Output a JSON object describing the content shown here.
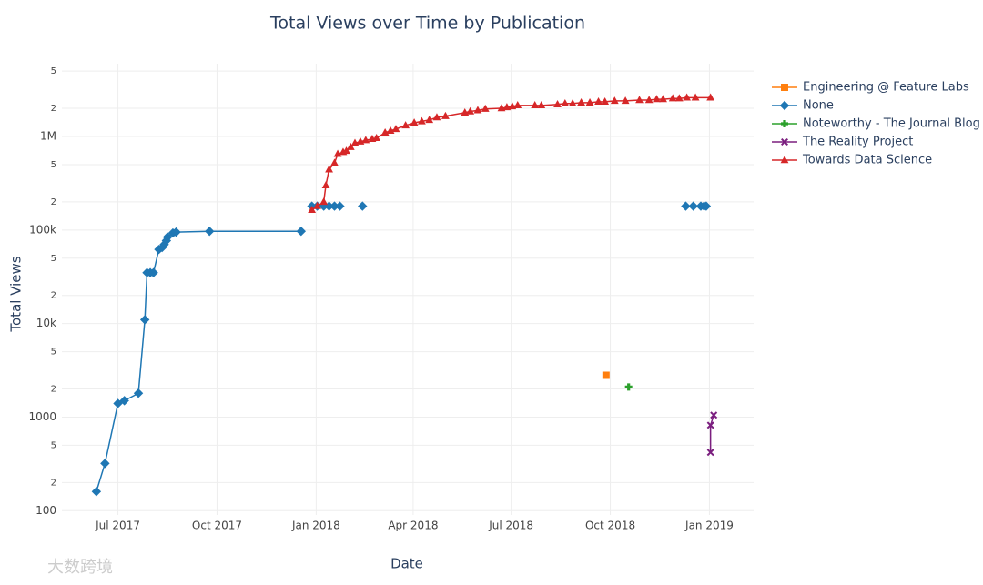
{
  "chart_data": {
    "type": "line",
    "title": "Total Views over Time by Publication",
    "x_label": "Date",
    "y_label": "Total Views",
    "watermark": "大数跨境",
    "log_y": true,
    "grid": true,
    "legend": "right",
    "xlim": [
      "2017-05-10",
      "2019-02-11"
    ],
    "xticks": [
      {
        "value": "2017-07-01",
        "label": "Jul 2017"
      },
      {
        "value": "2017-10-01",
        "label": "Oct 2017"
      },
      {
        "value": "2018-01-01",
        "label": "Jan 2018"
      },
      {
        "value": "2018-04-01",
        "label": "Apr 2018"
      },
      {
        "value": "2018-07-01",
        "label": "Jul 2018"
      },
      {
        "value": "2018-10-01",
        "label": "Oct 2018"
      },
      {
        "value": "2019-01-01",
        "label": "Jan 2019"
      }
    ],
    "ylim": [
      90,
      6000000
    ],
    "yticks": [
      100,
      {
        "value": 200,
        "label": "2"
      },
      {
        "value": 500,
        "label": "5"
      },
      1000,
      {
        "value": 2000,
        "label": "2"
      },
      {
        "value": 5000,
        "label": "5"
      },
      {
        "value": 10000,
        "label": "10k"
      },
      {
        "value": 20000,
        "label": "2"
      },
      {
        "value": 50000,
        "label": "5"
      },
      {
        "value": 100000,
        "label": "100k"
      },
      {
        "value": 200000,
        "label": "2"
      },
      {
        "value": 500000,
        "label": "5"
      },
      {
        "value": 1000000,
        "label": "1M"
      },
      {
        "value": 2000000,
        "label": "2"
      },
      {
        "value": 5000000,
        "label": "5"
      }
    ],
    "series": [
      {
        "name": "Engineering @ Feature Labs",
        "color": "#ff7f0e",
        "symbol": "square",
        "x": [
          "2018-09-27"
        ],
        "values": [
          2800
        ]
      },
      {
        "name": "None",
        "color": "#1f77b4",
        "symbol": "diamond",
        "x": [
          "2017-06-11",
          "2017-06-19",
          "2017-07-01",
          "2017-07-07",
          "2017-07-20",
          "2017-07-26",
          "2017-07-28",
          "2017-07-31",
          "2017-08-03",
          "2017-08-08",
          "2017-08-11",
          "2017-08-13",
          "2017-08-15",
          "2017-08-16",
          "2017-08-21",
          "2017-08-24",
          "2017-09-24",
          "2017-12-18",
          null,
          "2017-12-28",
          "2018-01-02",
          "2018-01-08",
          "2018-01-13",
          "2018-01-18",
          "2018-01-23",
          null,
          "2018-02-13",
          null,
          "2018-12-10",
          "2018-12-17",
          "2018-12-24",
          "2018-12-27",
          "2018-12-29"
        ],
        "values": [
          160,
          320,
          1400,
          1500,
          1800,
          11000,
          35000,
          35000,
          35000,
          62000,
          65000,
          70000,
          77000,
          84000,
          93000,
          95000,
          97000,
          97000,
          null,
          180000,
          180000,
          180000,
          180000,
          180000,
          180000,
          null,
          180000,
          null,
          180000,
          180000,
          180000,
          180000,
          180000
        ]
      },
      {
        "name": "Noteworthy - The Journal Blog",
        "color": "#2ca02c",
        "symbol": "cross",
        "x": [
          "2018-10-18"
        ],
        "values": [
          2100
        ]
      },
      {
        "name": "The Reality Project",
        "color": "#7b1f7f",
        "symbol": "x",
        "x": [
          "2019-01-02",
          "2019-01-02",
          "2019-01-05"
        ],
        "values": [
          420,
          820,
          1050
        ]
      },
      {
        "name": "Towards Data Science",
        "color": "#d62728",
        "symbol": "triangle-up",
        "x": [
          "2017-12-28",
          "2018-01-02",
          "2018-01-08",
          "2018-01-10",
          "2018-01-13",
          "2018-01-18",
          "2018-01-21",
          "2018-01-26",
          "2018-01-29",
          "2018-02-02",
          "2018-02-06",
          "2018-02-11",
          "2018-02-16",
          "2018-02-22",
          "2018-02-26",
          "2018-03-06",
          "2018-03-11",
          "2018-03-16",
          "2018-03-25",
          "2018-04-02",
          "2018-04-09",
          "2018-04-16",
          "2018-04-23",
          "2018-05-01",
          "2018-05-19",
          "2018-05-24",
          "2018-05-31",
          "2018-06-07",
          "2018-06-22",
          "2018-06-27",
          "2018-07-02",
          "2018-07-07",
          "2018-07-23",
          "2018-07-29",
          "2018-08-13",
          "2018-08-20",
          "2018-08-27",
          "2018-09-04",
          "2018-09-12",
          "2018-09-20",
          "2018-09-26",
          "2018-10-05",
          "2018-10-15",
          "2018-10-28",
          "2018-11-06",
          "2018-11-13",
          "2018-11-19",
          "2018-11-28",
          "2018-12-04",
          "2018-12-11",
          "2018-12-19",
          "2019-01-02"
        ],
        "values": [
          164000,
          180000,
          200000,
          300000,
          444000,
          520000,
          650000,
          680000,
          700000,
          770000,
          850000,
          880000,
          910000,
          940000,
          960000,
          1100000,
          1150000,
          1200000,
          1310000,
          1400000,
          1450000,
          1500000,
          1600000,
          1650000,
          1800000,
          1850000,
          1900000,
          1970000,
          2000000,
          2050000,
          2100000,
          2150000,
          2150000,
          2150000,
          2200000,
          2250000,
          2250000,
          2300000,
          2300000,
          2350000,
          2350000,
          2400000,
          2400000,
          2450000,
          2450000,
          2500000,
          2500000,
          2550000,
          2550000,
          2600000,
          2600000,
          2600000
        ]
      }
    ]
  }
}
